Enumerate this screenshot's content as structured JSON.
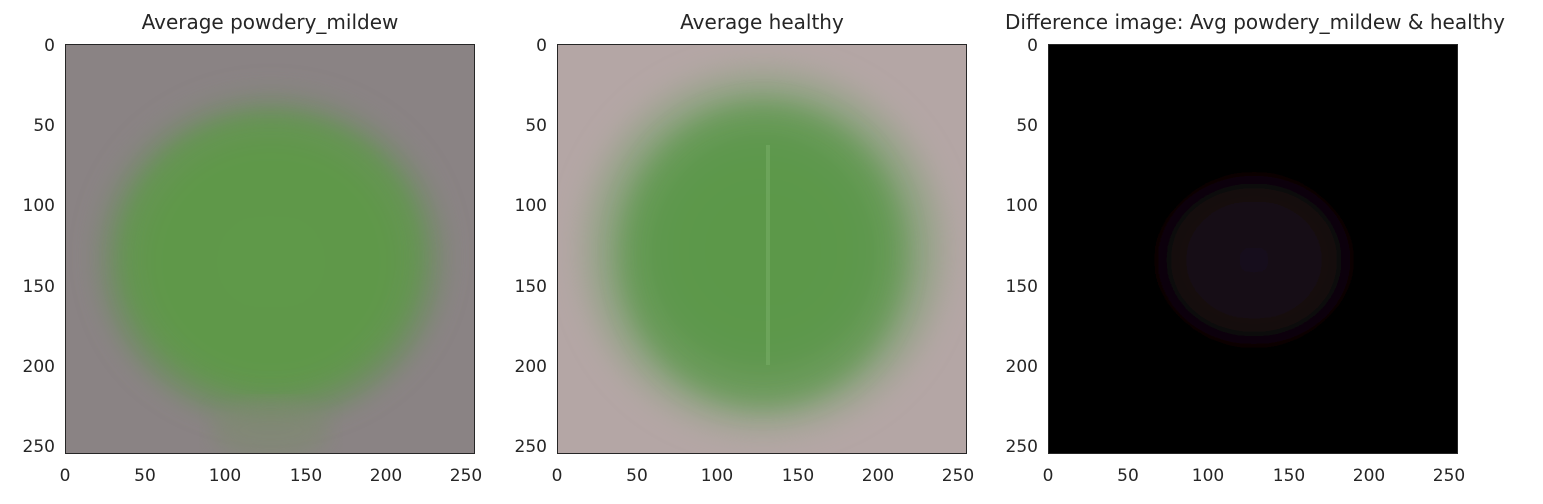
{
  "chart_data": [
    {
      "type": "image",
      "title": "Average powdery_mildew",
      "xticks": [
        "0",
        "50",
        "100",
        "150",
        "200",
        "250"
      ],
      "yticks": [
        "0",
        "50",
        "100",
        "150",
        "200",
        "250"
      ],
      "xlim": [
        0,
        255
      ],
      "ylim": [
        255,
        0
      ],
      "background_color": "#8a8384",
      "leaf_color": "#5e9948"
    },
    {
      "type": "image",
      "title": "Average healthy",
      "xticks": [
        "0",
        "50",
        "100",
        "150",
        "200",
        "250"
      ],
      "yticks": [
        "0",
        "50",
        "100",
        "150",
        "200",
        "250"
      ],
      "xlim": [
        0,
        255
      ],
      "ylim": [
        255,
        0
      ],
      "background_color": "#b4a6a5",
      "leaf_color": "#5a9848"
    },
    {
      "type": "image",
      "title": "Difference image: Avg powdery_mildew & healthy",
      "xticks": [
        "0",
        "50",
        "100",
        "150",
        "200",
        "250"
      ],
      "yticks": [
        "0",
        "50",
        "100",
        "150",
        "200",
        "250"
      ],
      "xlim": [
        0,
        255
      ],
      "ylim": [
        255,
        0
      ],
      "background_color": "#000000",
      "leaf_color": "#1a0d1c"
    }
  ]
}
